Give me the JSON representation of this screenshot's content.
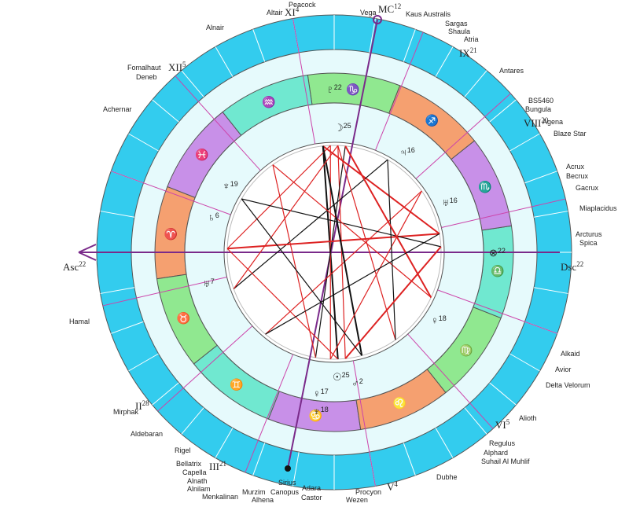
{
  "stars": [
    "Peacock",
    "Altair",
    "Vega",
    "Kaus Australis",
    "Sargas",
    "Shaula",
    "Atria",
    "Alnair",
    "Fomalhaut",
    "Deneb",
    "Antares",
    "BS5460",
    "Bungula",
    "Agena",
    "Blaze Star",
    "Achernar",
    "Acrux",
    "Becrux",
    "Gacrux",
    "Miaplacidus",
    "Arcturus",
    "Spica",
    "Hamal",
    "Alkaid",
    "Avior",
    "Delta Velorum",
    "Alioth",
    "Mirphak",
    "Aldebaran",
    "Regulus",
    "Alphard",
    "Suhail Al Muhlif",
    "Rigel",
    "Bellatrix",
    "Capella",
    "Alnath",
    "Alnilam",
    "Menkalinan",
    "Murzim",
    "Alhena",
    "Canopus",
    "Sirius",
    "Adara",
    "Castor",
    "Procyon",
    "Wezen",
    "Dubhe"
  ],
  "houses": [
    {
      "label": "XI",
      "deg": "4"
    },
    {
      "label": "MC",
      "deg": "12"
    },
    {
      "label": "IX",
      "deg": "21"
    },
    {
      "label": "XII",
      "deg": "5"
    },
    {
      "label": "VIII",
      "deg": "20"
    },
    {
      "label": "Asc",
      "deg": "22"
    },
    {
      "label": "Dsc",
      "deg": "22"
    },
    {
      "label": "II",
      "deg": "28"
    },
    {
      "label": "VI",
      "deg": "5"
    },
    {
      "label": "III",
      "deg": "21"
    },
    {
      "label": "V",
      "deg": "4"
    }
  ],
  "planets": [
    {
      "glyph": "☽",
      "deg": "25"
    },
    {
      "glyph": "♃",
      "deg": "16"
    },
    {
      "glyph": "♅",
      "deg": "16"
    },
    {
      "glyph": "♀",
      "deg": "18"
    },
    {
      "glyph": "☉",
      "deg": "25"
    },
    {
      "glyph": "♂",
      "deg": "2"
    },
    {
      "glyph": "♄",
      "deg": "6"
    },
    {
      "glyph": "♆",
      "deg": "19"
    },
    {
      "glyph": "♇",
      "deg": "22"
    },
    {
      "glyph": "♀",
      "deg": "17"
    },
    {
      "glyph": "♅",
      "deg": "7"
    },
    {
      "glyph": "♆",
      "deg": "18"
    },
    {
      "glyph": "⊗",
      "deg": "22"
    }
  ],
  "signs": [
    "♈",
    "♉",
    "♊",
    "♋",
    "♌",
    "♍",
    "♎",
    "♏",
    "♐",
    "♑",
    "♒",
    "♓"
  ]
}
